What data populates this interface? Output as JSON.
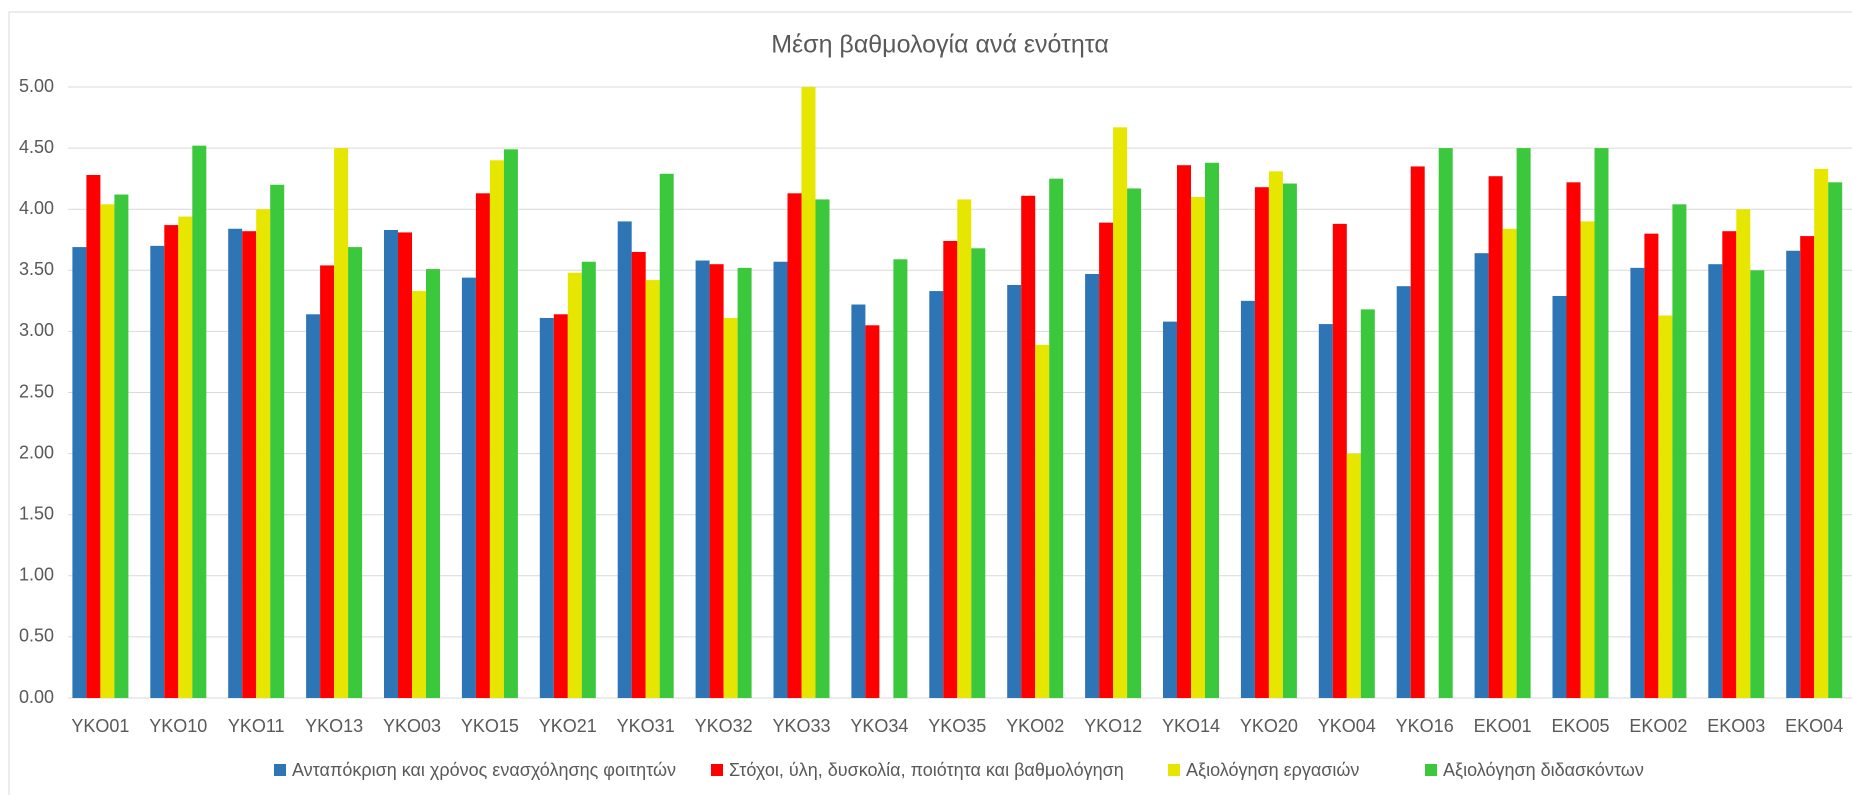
{
  "chart_data": {
    "type": "bar",
    "title": "Μέση βαθμολογία ανά ενότητα",
    "categories": [
      "YKO01",
      "YKO10",
      "YKO11",
      "YKO13",
      "YKO03",
      "YKO15",
      "YKO21",
      "YKO31",
      "YKO32",
      "YKO33",
      "YKO34",
      "YKO35",
      "YKO02",
      "YKO12",
      "YKO14",
      "YKO20",
      "YKO04",
      "YKO16",
      "EKO01",
      "EKO05",
      "EKO02",
      "EKO03",
      "EKO04"
    ],
    "series": [
      {
        "name": "Ανταπόκριση και χρόνος ενασχόλησης φοιτητών",
        "color": "#2e75b6",
        "values": [
          3.69,
          3.7,
          3.84,
          3.14,
          3.83,
          3.44,
          3.11,
          3.9,
          3.58,
          3.57,
          3.22,
          3.33,
          3.38,
          3.47,
          3.08,
          3.25,
          3.06,
          3.37,
          3.64,
          3.29,
          3.52,
          3.55,
          3.66
        ]
      },
      {
        "name": "Στόχοι, ύλη, δυσκολία, ποιότητα και βαθμολόγηση",
        "color": "#ff0000",
        "values": [
          4.28,
          3.87,
          3.82,
          3.54,
          3.81,
          4.13,
          3.14,
          3.65,
          3.55,
          4.13,
          3.05,
          3.74,
          4.11,
          3.89,
          4.36,
          4.18,
          3.88,
          4.35,
          4.27,
          4.22,
          3.8,
          3.82,
          3.78
        ]
      },
      {
        "name": "Αξιολόγηση εργασιών",
        "color": "#e6e600",
        "values": [
          4.04,
          3.94,
          4.0,
          4.5,
          3.33,
          4.4,
          3.48,
          3.42,
          3.11,
          5.0,
          null,
          4.08,
          2.89,
          4.67,
          4.1,
          4.31,
          2.0,
          null,
          3.84,
          3.9,
          3.13,
          4.0,
          4.33
        ]
      },
      {
        "name": "Αξιολόγηση διδασκόντων",
        "color": "#3cc83c",
        "values": [
          4.12,
          4.52,
          4.2,
          3.69,
          3.51,
          4.49,
          3.57,
          4.29,
          3.52,
          4.08,
          3.59,
          3.68,
          4.25,
          4.17,
          4.38,
          4.21,
          3.18,
          4.5,
          4.5,
          4.5,
          4.04,
          3.5,
          4.22
        ]
      }
    ],
    "ylim": [
      0,
      5
    ],
    "yticks": [
      {
        "value": 0,
        "label": "0.00"
      },
      {
        "value": 0.5,
        "label": "0.50"
      },
      {
        "value": 1,
        "label": "1.00"
      },
      {
        "value": 1.5,
        "label": "1.50"
      },
      {
        "value": 2,
        "label": "2.00"
      },
      {
        "value": 2.5,
        "label": "2.50"
      },
      {
        "value": 3,
        "label": "3.00"
      },
      {
        "value": 3.5,
        "label": "3.50"
      },
      {
        "value": 4,
        "label": "4.00"
      },
      {
        "value": 4.5,
        "label": "4.50"
      },
      {
        "value": 5,
        "label": "5.00"
      }
    ],
    "grid": true,
    "legend": "bottom"
  }
}
